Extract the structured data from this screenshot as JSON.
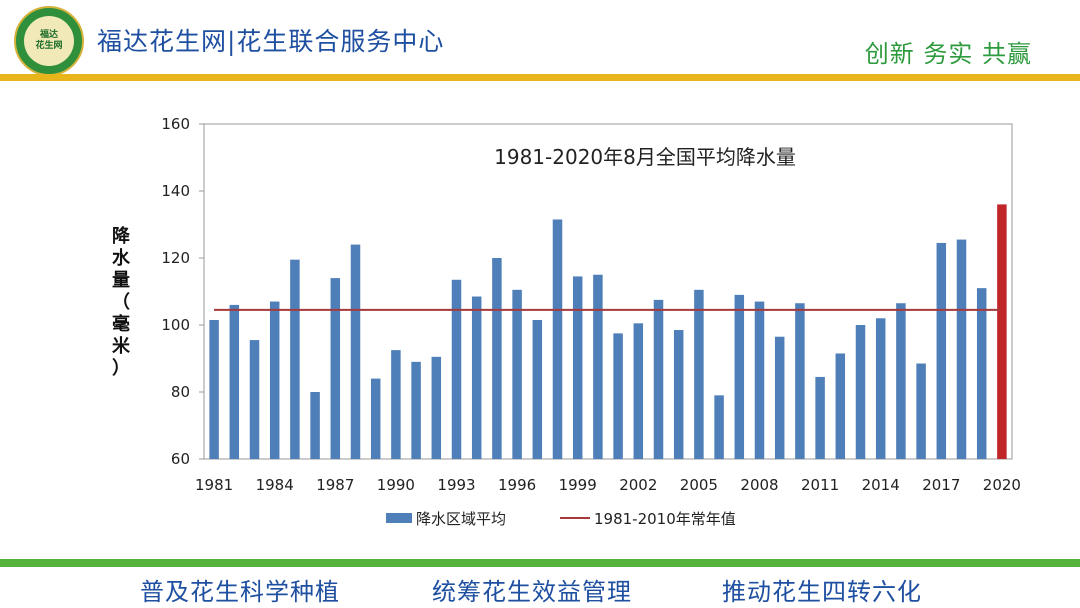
{
  "header": {
    "logo_text_top": "福达",
    "logo_text_bottom": "花生网",
    "site_title": "福达花生网|花生联合服务中心",
    "slogan": "创新  务实  共赢"
  },
  "footer": {
    "item1": "普及花生科学种植",
    "item2": "统筹花生效益管理",
    "item3": "推动花生四转六化"
  },
  "colors": {
    "bar": "#4f7fb8",
    "highlight_bar": "#c0252a",
    "baseline": "#a53a3c",
    "gold": "#e8b61a",
    "green": "#55b33c"
  },
  "chart_data": {
    "type": "bar",
    "title": "1981-2020年8月全国平均降水量",
    "ylabel": "降水量（毫米）",
    "ylabel_chars": [
      "降",
      "水",
      "量",
      "（",
      "毫",
      "米",
      "）"
    ],
    "xlabel": "",
    "ylim": [
      60,
      160
    ],
    "yticks": [
      60,
      80,
      100,
      120,
      140,
      160
    ],
    "x_tick_labels": [
      "1981",
      "1984",
      "1987",
      "1990",
      "1993",
      "1996",
      "1999",
      "2002",
      "2005",
      "2008",
      "2011",
      "2014",
      "2017",
      "2020"
    ],
    "categories": [
      "1981",
      "1982",
      "1983",
      "1984",
      "1985",
      "1986",
      "1987",
      "1988",
      "1989",
      "1990",
      "1991",
      "1992",
      "1993",
      "1994",
      "1995",
      "1996",
      "1997",
      "1998",
      "1999",
      "2000",
      "2001",
      "2002",
      "2003",
      "2004",
      "2005",
      "2006",
      "2007",
      "2008",
      "2009",
      "2010",
      "2011",
      "2012",
      "2013",
      "2014",
      "2015",
      "2016",
      "2017",
      "2018",
      "2019",
      "2020"
    ],
    "series": [
      {
        "name": "降水区域平均",
        "values": [
          101.5,
          106,
          95.5,
          107,
          119.5,
          80,
          114,
          124,
          84,
          92.5,
          89,
          90.5,
          113.5,
          108.5,
          120,
          110.5,
          101.5,
          131.5,
          114.5,
          115,
          97.5,
          100.5,
          107.5,
          98.5,
          110.5,
          79,
          109,
          107,
          96.5,
          106.5,
          84.5,
          91.5,
          100,
          102,
          106.5,
          88.5,
          124.5,
          125.5,
          111,
          136
        ]
      }
    ],
    "highlight_category": "2020",
    "reference_line": {
      "name": "1981-2010年常年值",
      "value": 104.5
    },
    "legend_position": "bottom",
    "grid": false
  }
}
